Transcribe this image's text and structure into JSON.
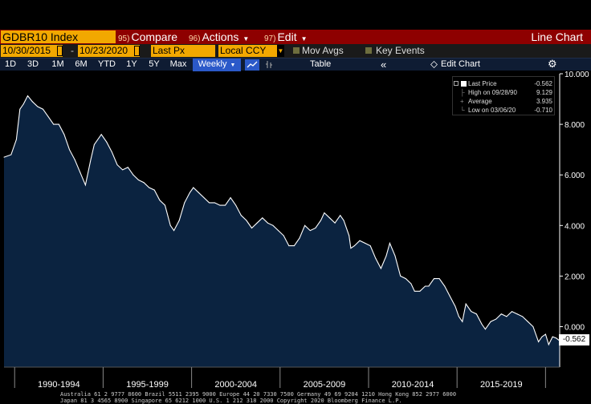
{
  "titlebar": {
    "ticker": "GDBR10 Index",
    "menus": [
      {
        "num": "95)",
        "label": "Compare"
      },
      {
        "num": "96)",
        "label": "Actions"
      },
      {
        "num": "97)",
        "label": "Edit"
      }
    ],
    "view_label": "Line Chart",
    "colors": {
      "bar": "#8e0000",
      "field": "#f2a800"
    }
  },
  "fieldbar": {
    "start_date": "10/30/2015",
    "end_date": "10/23/2020",
    "dash": "-",
    "field": "Last Px",
    "currency": "Local CCY",
    "mov_avgs": "Mov Avgs",
    "key_events": "Key Events"
  },
  "toolbar": {
    "periods": [
      "1D",
      "3D",
      "1M",
      "6M",
      "YTD",
      "1Y",
      "5Y",
      "Max"
    ],
    "active_period": "Weekly",
    "table_label": "Table",
    "collapse_label": "«",
    "edit_chart_label": "Edit Chart",
    "active_color": "#2b59c9"
  },
  "legend": {
    "last_price": {
      "label": "Last Price",
      "value": "-0.562"
    },
    "high": {
      "label": "High on 09/28/90",
      "value": "9.129"
    },
    "average": {
      "label": "Average",
      "value": "3.935"
    },
    "low": {
      "label": "Low on 03/06/20",
      "value": "-0.710"
    }
  },
  "last_tag": "-0.562",
  "chart_data": {
    "type": "area",
    "series": [
      {
        "name": "Last Price",
        "x": [
          1989.4,
          1989.8,
          1990.1,
          1990.3,
          1990.5,
          1990.74,
          1991.0,
          1991.3,
          1991.6,
          1991.9,
          1992.2,
          1992.5,
          1992.8,
          1993.1,
          1993.4,
          1993.7,
          1994.0,
          1994.3,
          1994.5,
          1994.9,
          1995.2,
          1995.5,
          1995.8,
          1996.1,
          1996.4,
          1996.7,
          1997.0,
          1997.3,
          1997.6,
          1997.9,
          1998.2,
          1998.5,
          1998.8,
          1999.0,
          1999.3,
          1999.6,
          1999.9,
          2000.1,
          2000.4,
          2000.7,
          2001.0,
          2001.3,
          2001.6,
          2001.9,
          2002.2,
          2002.5,
          2002.8,
          2003.1,
          2003.4,
          2003.7,
          2004.0,
          2004.3,
          2004.6,
          2004.9,
          2005.2,
          2005.5,
          2005.8,
          2006.1,
          2006.4,
          2006.7,
          2007.0,
          2007.3,
          2007.5,
          2007.8,
          2008.1,
          2008.4,
          2008.6,
          2008.9,
          2009.0,
          2009.2,
          2009.5,
          2009.8,
          2010.1,
          2010.4,
          2010.7,
          2011.0,
          2011.2,
          2011.5,
          2011.8,
          2012.1,
          2012.4,
          2012.6,
          2012.9,
          2013.2,
          2013.4,
          2013.7,
          2014.0,
          2014.3,
          2014.6,
          2014.9,
          2015.1,
          2015.3,
          2015.5,
          2015.8,
          2016.1,
          2016.4,
          2016.6,
          2016.9,
          2017.2,
          2017.5,
          2017.8,
          2018.1,
          2018.4,
          2018.7,
          2019.0,
          2019.3,
          2019.6,
          2019.8,
          2020.0,
          2020.18,
          2020.4,
          2020.6,
          2020.8
        ],
        "values": [
          6.7,
          6.8,
          7.4,
          8.6,
          8.8,
          9.129,
          8.9,
          8.7,
          8.6,
          8.3,
          8.0,
          8.0,
          7.6,
          7.0,
          6.6,
          6.1,
          5.6,
          6.6,
          7.2,
          7.6,
          7.3,
          6.9,
          6.4,
          6.2,
          6.3,
          6.0,
          5.8,
          5.7,
          5.5,
          5.4,
          5.0,
          4.8,
          4.0,
          3.8,
          4.2,
          4.9,
          5.3,
          5.5,
          5.3,
          5.1,
          4.9,
          4.9,
          4.8,
          4.8,
          5.1,
          4.8,
          4.4,
          4.2,
          3.9,
          4.1,
          4.3,
          4.1,
          4.0,
          3.8,
          3.6,
          3.2,
          3.2,
          3.5,
          4.0,
          3.8,
          3.9,
          4.2,
          4.5,
          4.3,
          4.1,
          4.4,
          4.2,
          3.6,
          3.1,
          3.2,
          3.4,
          3.3,
          3.2,
          2.7,
          2.3,
          2.8,
          3.3,
          2.8,
          2.0,
          1.9,
          1.7,
          1.4,
          1.4,
          1.6,
          1.6,
          1.9,
          1.9,
          1.6,
          1.2,
          0.8,
          0.4,
          0.2,
          0.9,
          0.6,
          0.5,
          0.1,
          -0.1,
          0.2,
          0.3,
          0.5,
          0.4,
          0.6,
          0.5,
          0.4,
          0.2,
          0.0,
          -0.6,
          -0.4,
          -0.3,
          -0.71,
          -0.4,
          -0.45,
          -0.562
        ]
      }
    ],
    "xlim": [
      1989.4,
      2020.8
    ],
    "ylim": [
      -1.6,
      10.0
    ],
    "y_ticks": [
      "10.000",
      "8.000",
      "6.000",
      "4.000",
      "2.000",
      "0.000"
    ],
    "y_tick_values": [
      10,
      8,
      6,
      4,
      2,
      0
    ],
    "x_tick_labels": [
      "1990-1994",
      "1995-1999",
      "2000-2004",
      "2005-2009",
      "2010-2014",
      "2015-2019"
    ],
    "x_band_bounds": [
      1990,
      1995,
      2000,
      2005,
      2010,
      2015,
      2020
    ],
    "fill_color": "#0b2340",
    "line_color": "#ffffff",
    "grid": false,
    "legend_position": "top-right"
  },
  "footer": {
    "line1": "Australia 61 2 9777 8600 Brazil 5511 2395 9000 Europe 44 20 7330 7500 Germany 49 69 9204 1210 Hong Kong 852 2977 6000",
    "line2": "Japan 81 3 4565 8900        Singapore 65 6212 1000        U.S. 1 212 318 2000        Copyright 2020 Bloomberg Finance L.P."
  }
}
